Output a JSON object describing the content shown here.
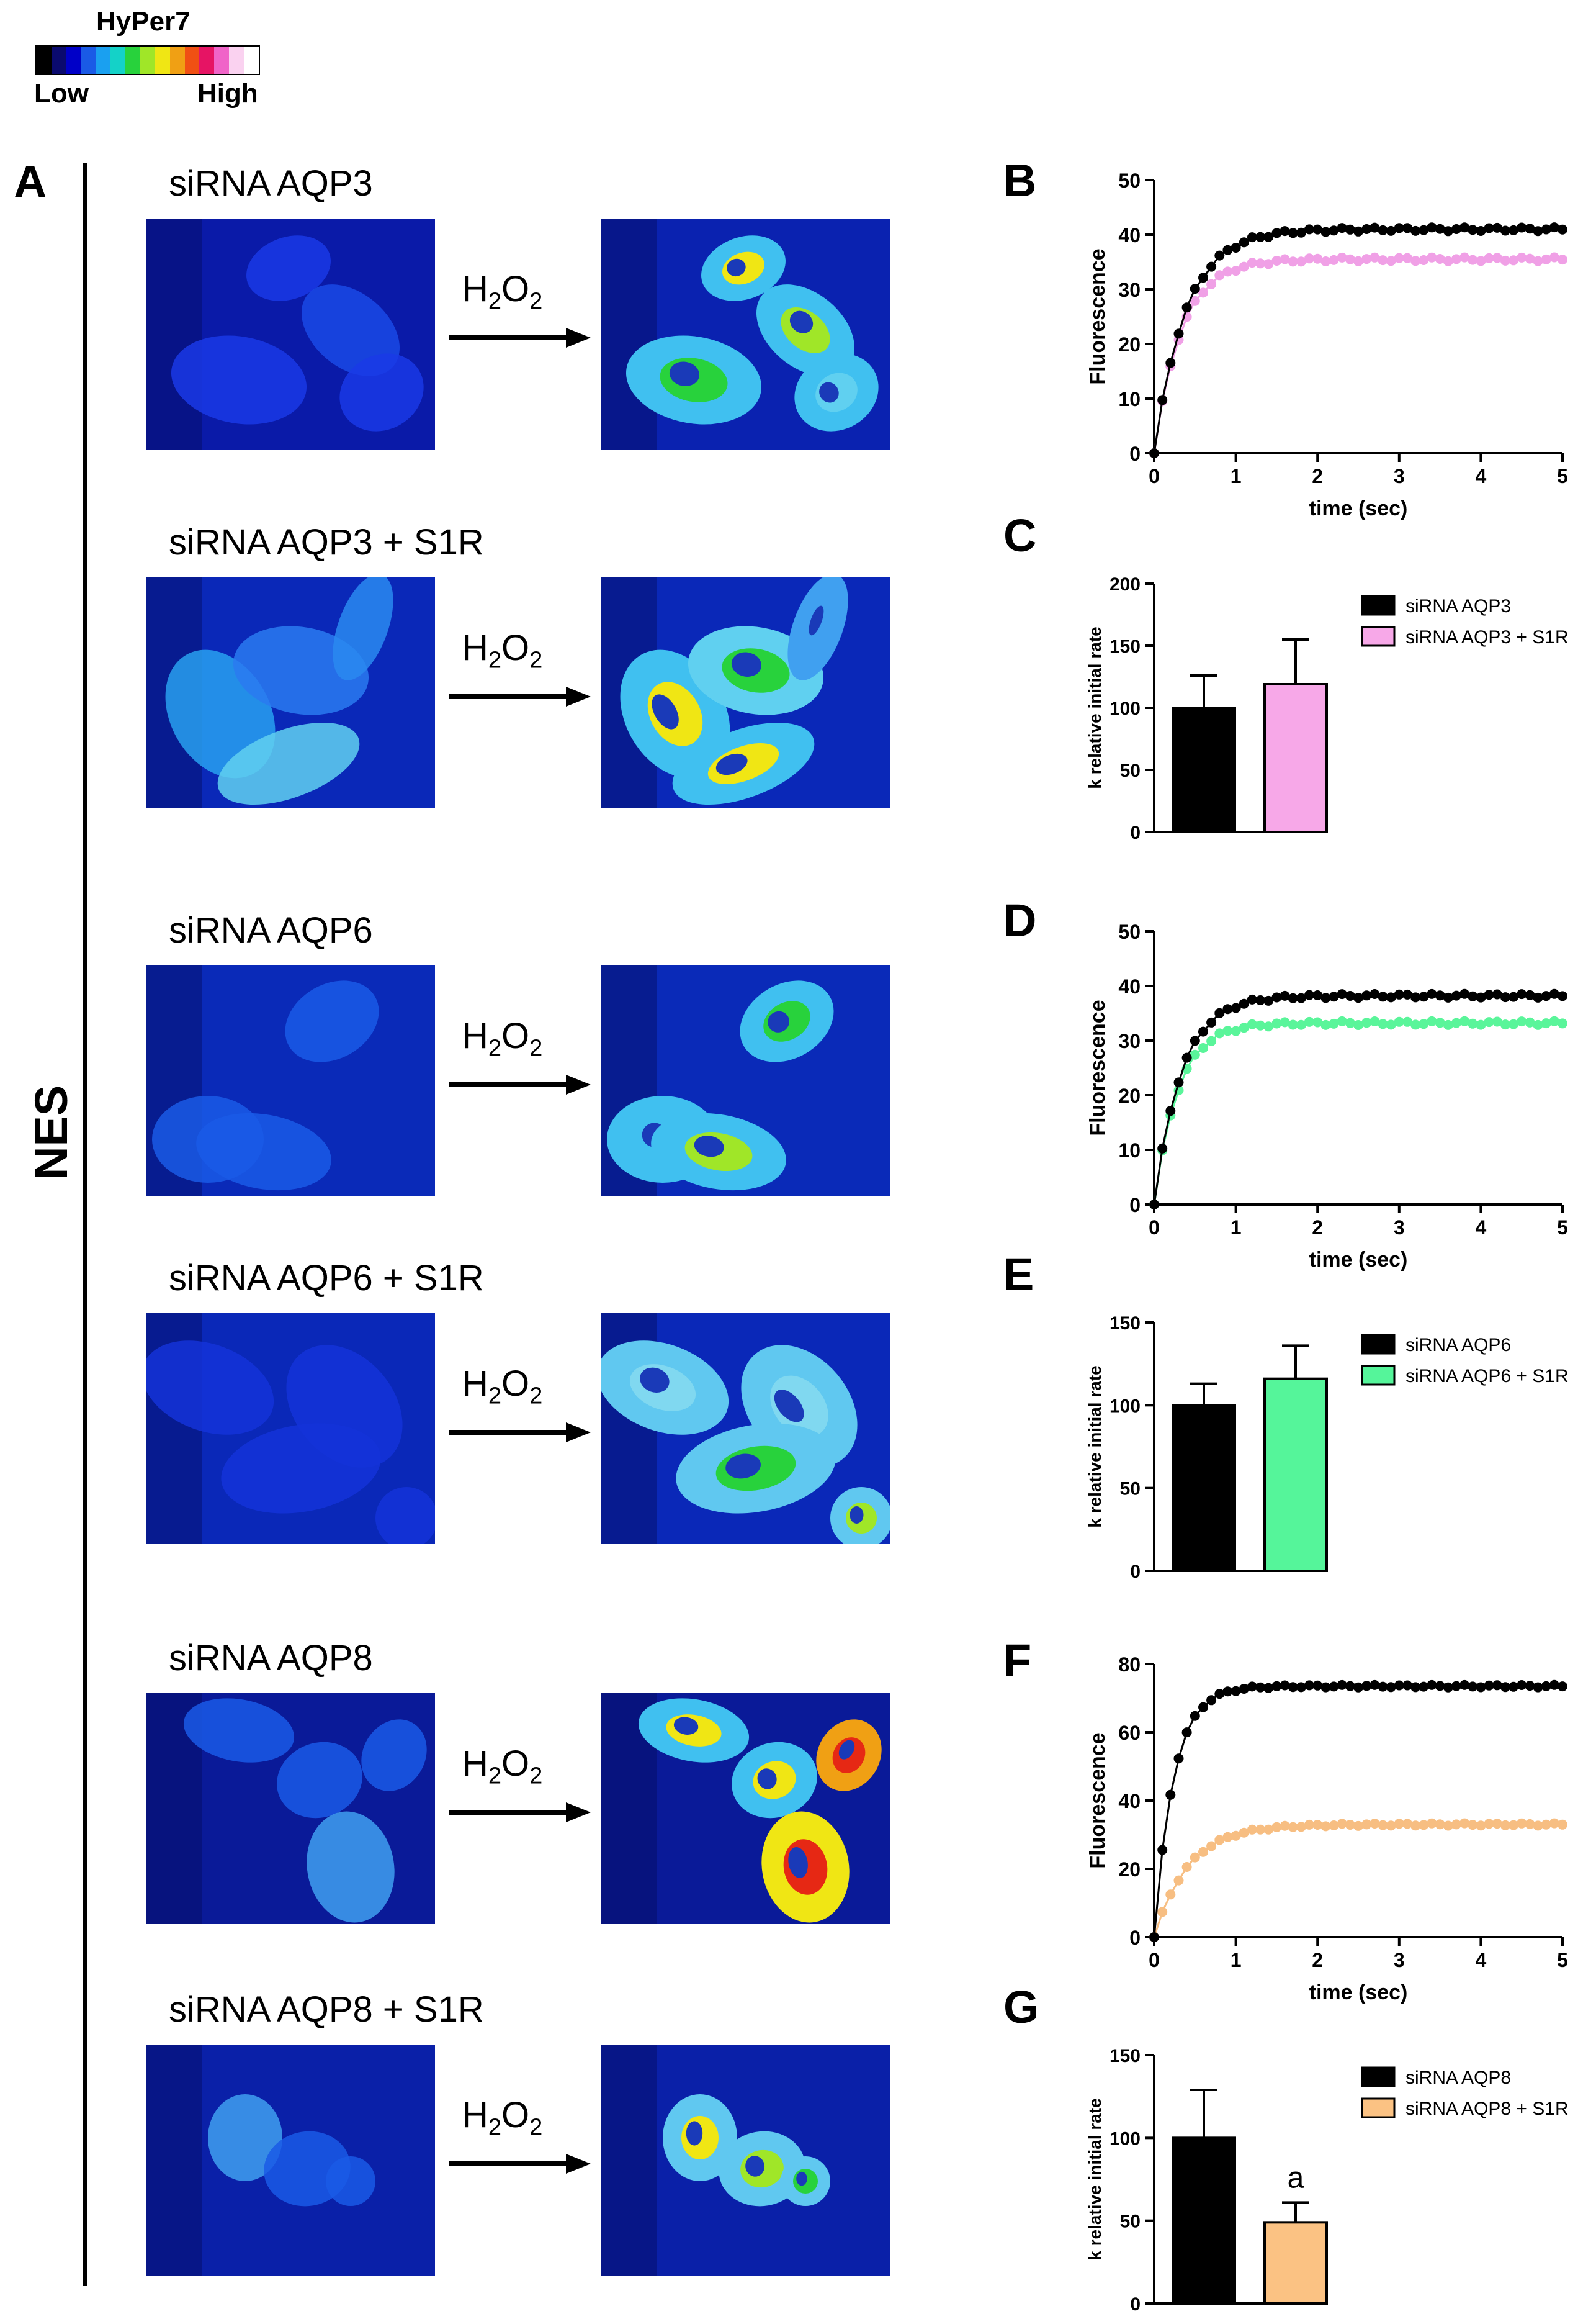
{
  "colorbar": {
    "title": "HyPer7",
    "low_label": "Low",
    "high_label": "High",
    "colors": [
      "#000000",
      "#0a0a6e",
      "#0000c8",
      "#1a5ae6",
      "#1aa0f0",
      "#14d2c8",
      "#28d23c",
      "#a0e628",
      "#f0e614",
      "#f0a014",
      "#f05014",
      "#e61464",
      "#f064c8",
      "#fad2f0",
      "#ffffff"
    ]
  },
  "side_label": "NES",
  "arrow_label_main": "H",
  "arrow_label_sub": "2",
  "arrow_label_end": "O",
  "arrow_label_end_sub": "2",
  "rows": [
    {
      "label": "siRNA  AQP3"
    },
    {
      "label": "siRNA  AQP3 + S1R"
    },
    {
      "label": "siRNA  AQP6"
    },
    {
      "label": "siRNA  AQP6 + S1R"
    },
    {
      "label": "siRNA  AQP8"
    },
    {
      "label": "siRNA  AQP8 + S1R"
    }
  ],
  "panel_letters": {
    "A": "A",
    "B": "B",
    "C": "C",
    "D": "D",
    "E": "E",
    "F": "F",
    "G": "G"
  },
  "chart_data": [
    {
      "id": "B",
      "type": "line",
      "xlabel": "time (sec)",
      "ylabel": "Fluorescence",
      "xlim": [
        0,
        5
      ],
      "ylim": [
        0,
        50
      ],
      "xticks": [
        0,
        1,
        2,
        3,
        4,
        5
      ],
      "yticks": [
        0,
        10,
        20,
        30,
        40,
        50
      ],
      "series": [
        {
          "color": "#000000",
          "plateau": 41,
          "k": 2.6
        },
        {
          "color": "#f0a0e6",
          "plateau": 35.5,
          "k": 3.0
        }
      ]
    },
    {
      "id": "C",
      "type": "bar",
      "ylabel": "k relative initial rate",
      "ylim": [
        0,
        200
      ],
      "yticks": [
        0,
        50,
        100,
        150,
        200
      ],
      "categories": [
        "siRNA AQP3",
        "siRNA AQP3 + S1R"
      ],
      "values": [
        100,
        119
      ],
      "errors": [
        26,
        36
      ],
      "colors": [
        "#000000",
        "#f7a8e8"
      ],
      "legend": [
        "siRNA AQP3",
        "siRNA AQP3 + S1R"
      ]
    },
    {
      "id": "D",
      "type": "line",
      "xlabel": "time (sec)",
      "ylabel": "Fluorescence",
      "xlim": [
        0,
        5
      ],
      "ylim": [
        0,
        50
      ],
      "xticks": [
        0,
        1,
        2,
        3,
        4,
        5
      ],
      "yticks": [
        0,
        10,
        20,
        30,
        40,
        50
      ],
      "series": [
        {
          "color": "#000000",
          "plateau": 38.2,
          "k": 3.0
        },
        {
          "color": "#5af59a",
          "plateau": 33.2,
          "k": 3.4
        }
      ]
    },
    {
      "id": "E",
      "type": "bar",
      "ylabel": "k relative initial rate",
      "ylim": [
        0,
        150
      ],
      "yticks": [
        0,
        50,
        100,
        150
      ],
      "categories": [
        "siRNA AQP6",
        "siRNA AQP6 + S1R"
      ],
      "values": [
        100,
        116
      ],
      "errors": [
        13,
        20
      ],
      "colors": [
        "#000000",
        "#55f59a"
      ],
      "legend": [
        "siRNA AQP6",
        "siRNA AQP6 + S1R"
      ]
    },
    {
      "id": "F",
      "type": "line",
      "xlabel": "time (sec)",
      "ylabel": "Fluorescence",
      "xlim": [
        0,
        5
      ],
      "ylim": [
        0,
        80
      ],
      "xticks": [
        0,
        1,
        2,
        3,
        4,
        5
      ],
      "yticks": [
        0,
        20,
        40,
        60,
        80
      ],
      "series": [
        {
          "color": "#000000",
          "plateau": 73.5,
          "k": 4.2
        },
        {
          "color": "#f7be82",
          "plateau": 33,
          "k": 2.4
        }
      ]
    },
    {
      "id": "G",
      "type": "bar",
      "ylabel": "k relative initial rate",
      "ylim": [
        0,
        150
      ],
      "yticks": [
        0,
        50,
        100,
        150
      ],
      "categories": [
        "siRNA AQP8",
        "siRNA AQP8 + S1R"
      ],
      "values": [
        100,
        49
      ],
      "errors": [
        29,
        12
      ],
      "colors": [
        "#000000",
        "#fbc283"
      ],
      "legend": [
        "siRNA AQP8",
        "siRNA AQP8 + S1R"
      ],
      "annotation": "a"
    }
  ]
}
